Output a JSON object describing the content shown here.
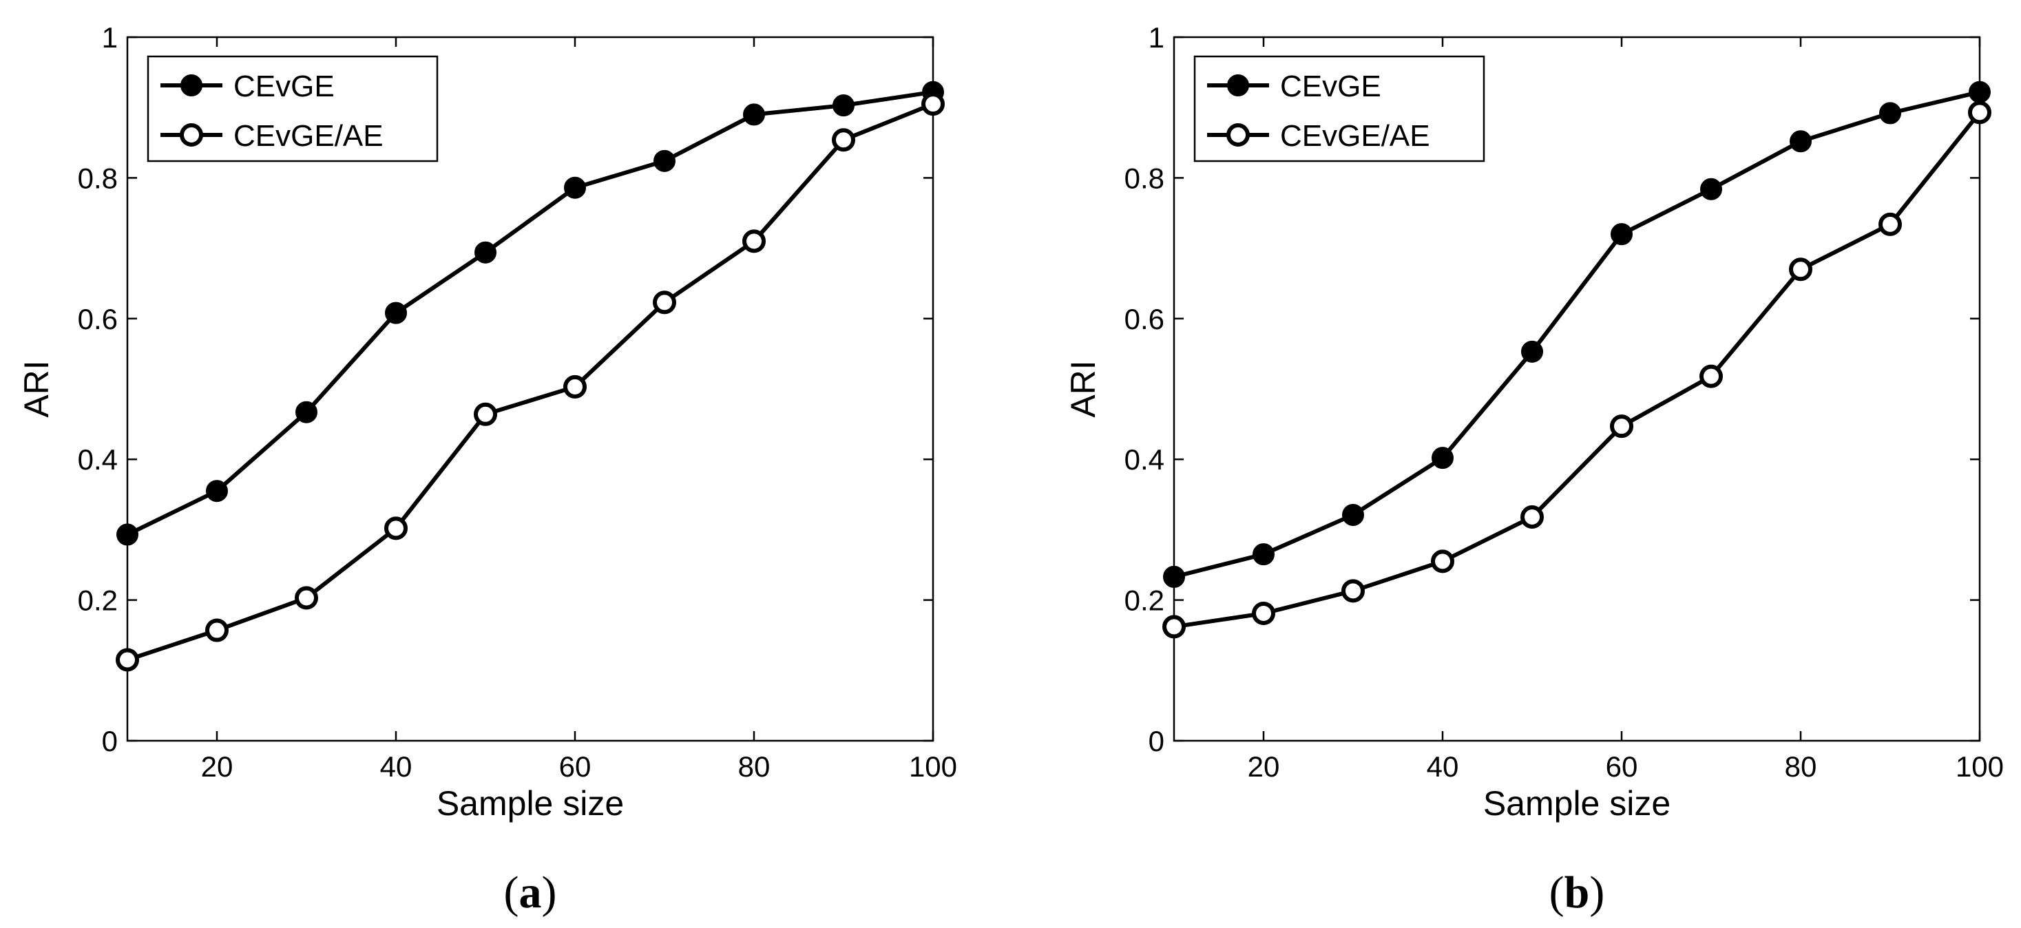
{
  "chart_data": [
    {
      "type": "line",
      "panel_label": {
        "open": "(",
        "letter": "a",
        "close": ")"
      },
      "xlabel": "Sample size",
      "ylabel": "ARI",
      "xlim": [
        10,
        100
      ],
      "ylim": [
        0,
        1
      ],
      "xticks": [
        20,
        40,
        60,
        80,
        100
      ],
      "yticks": [
        0,
        0.2,
        0.4,
        0.6,
        0.8,
        1
      ],
      "ytick_labels": [
        "0",
        "0.2",
        "0.4",
        "0.6",
        "0.8",
        "1"
      ],
      "legend_position": "top-left",
      "grid": false,
      "x": [
        10,
        20,
        30,
        40,
        50,
        60,
        70,
        80,
        90,
        100
      ],
      "series": [
        {
          "name": "CEvGE",
          "marker": "filled-circle",
          "values": [
            0.293,
            0.355,
            0.467,
            0.608,
            0.694,
            0.786,
            0.824,
            0.89,
            0.903,
            0.922
          ]
        },
        {
          "name": "CEvGE/AE",
          "marker": "open-circle",
          "values": [
            0.115,
            0.157,
            0.203,
            0.302,
            0.464,
            0.503,
            0.623,
            0.71,
            0.854,
            0.905
          ]
        }
      ]
    },
    {
      "type": "line",
      "panel_label": {
        "open": "(",
        "letter": "b",
        "close": ")"
      },
      "xlabel": "Sample size",
      "ylabel": "ARI",
      "xlim": [
        10,
        100
      ],
      "ylim": [
        0,
        1
      ],
      "xticks": [
        20,
        40,
        60,
        80,
        100
      ],
      "yticks": [
        0,
        0.2,
        0.4,
        0.6,
        0.8,
        1
      ],
      "ytick_labels": [
        "0",
        "0.2",
        "0.4",
        "0.6",
        "0.8",
        "1"
      ],
      "legend_position": "top-left",
      "grid": false,
      "x": [
        10,
        20,
        30,
        40,
        50,
        60,
        70,
        80,
        90,
        100
      ],
      "series": [
        {
          "name": "CEvGE",
          "marker": "filled-circle",
          "values": [
            0.233,
            0.265,
            0.321,
            0.402,
            0.553,
            0.72,
            0.784,
            0.852,
            0.892,
            0.922
          ]
        },
        {
          "name": "CEvGE/AE",
          "marker": "open-circle",
          "values": [
            0.162,
            0.181,
            0.213,
            0.255,
            0.318,
            0.447,
            0.518,
            0.67,
            0.734,
            0.893
          ]
        }
      ]
    }
  ],
  "style": {
    "line_color": "#000000",
    "background": "#ffffff"
  }
}
